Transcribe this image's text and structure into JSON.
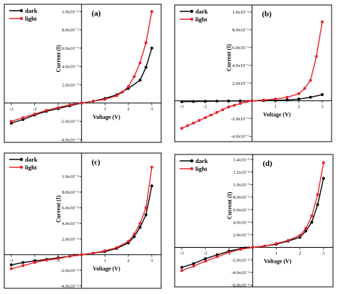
{
  "chart_data": [
    {
      "type": "line",
      "panel_label": "(a)",
      "xlabel": "Voltage (V)",
      "ylabel": "Current (I)",
      "xlim": [
        -3.3,
        3.4
      ],
      "ylim": [
        -4.3e-07,
        1.08e-06
      ],
      "xticks": [
        -3,
        -2,
        -1,
        1,
        2,
        3
      ],
      "xtick_labels": [
        "-3",
        "-2",
        "-1",
        "1",
        "2",
        "3"
      ],
      "yticks": [
        1e-06,
        8e-07,
        6e-07,
        4e-07,
        2e-07,
        0,
        -2e-07,
        -4e-07
      ],
      "ytick_labels": [
        "1.0x10⁻⁶",
        "8.0x10⁻⁷",
        "6.0x10⁻⁷",
        "4.0x10⁻⁷",
        "2.0x10⁻⁷",
        "0.0",
        "-2.0x10⁻⁷",
        "-4.0x10⁻⁷"
      ],
      "legend_position": "top-left",
      "series": [
        {
          "name": "dark",
          "color": "#000000",
          "x": [
            -3,
            -2.5,
            -2,
            -1.5,
            -1,
            -0.5,
            0,
            0.5,
            1,
            1.5,
            2,
            2.5,
            2.75,
            3
          ],
          "y": [
            -2.2e-07,
            -1.8e-07,
            -1.3e-07,
            -9e-08,
            -6e-08,
            -3e-08,
            0,
            2e-08,
            5e-08,
            9e-08,
            1.6e-07,
            2.5e-07,
            3.9e-07,
            6e-07
          ]
        },
        {
          "name": "light",
          "color": "#e8202a",
          "x": [
            -3,
            -2.5,
            -2,
            -1.5,
            -1,
            -0.5,
            0,
            0.5,
            1,
            1.5,
            1.75,
            2,
            2.25,
            2.5,
            2.75,
            3
          ],
          "y": [
            -2e-07,
            -1.6e-07,
            -1.2e-07,
            -8e-08,
            -5e-08,
            -2e-08,
            0,
            2e-08,
            4e-08,
            8e-08,
            1.2e-07,
            1.8e-07,
            2.9e-07,
            4.4e-07,
            6.6e-07,
            1e-06
          ]
        }
      ]
    },
    {
      "type": "line",
      "panel_label": "(b)",
      "xlabel": "Voltage (V)",
      "ylabel": "Current (I)",
      "xlim": [
        -3.3,
        3.4
      ],
      "ylim": [
        -4.6e-06,
        1.08e-05
      ],
      "xticks": [
        -3,
        -2,
        -1,
        1,
        2,
        3
      ],
      "xtick_labels": [
        "-3",
        "-2",
        "-1",
        "1",
        "2",
        "3"
      ],
      "yticks": [
        1e-05,
        8e-06,
        6e-06,
        4e-06,
        2e-06,
        0,
        -2e-06,
        -4e-06
      ],
      "ytick_labels": [
        "1.0x10⁻⁵",
        "8.0x10⁻⁶",
        "6.0x10⁻⁶",
        "4.0x10⁻⁶",
        "2.0x10⁻⁶",
        "0.0",
        "-2.0x10⁻⁶",
        "-4.0x10⁻⁶"
      ],
      "legend_position": "top-left",
      "series": [
        {
          "name": "dark",
          "color": "#000000",
          "x": [
            -3,
            -2.5,
            -2,
            -1.5,
            -1,
            -0.5,
            0,
            0.5,
            1,
            1.5,
            2,
            2.5,
            3
          ],
          "y": [
            -1e-07,
            -8e-08,
            -6e-08,
            -4e-08,
            -2e-08,
            -1e-08,
            0,
            2e-08,
            5e-08,
            1e-07,
            2e-07,
            4e-07,
            7e-07
          ]
        },
        {
          "name": "light",
          "color": "#e8202a",
          "x": [
            -3,
            -2.75,
            -2.5,
            -2.25,
            -2,
            -1.75,
            -1.5,
            -1.25,
            -1,
            -0.75,
            -0.5,
            -0.25,
            0,
            0.5,
            1,
            1.5,
            2,
            2.25,
            2.5,
            2.75,
            3
          ],
          "y": [
            -3.1e-06,
            -2.8e-06,
            -2.5e-06,
            -2.2e-06,
            -1.9e-06,
            -1.6e-06,
            -1.3e-06,
            -1e-06,
            -7e-07,
            -5e-07,
            -3e-07,
            -1e-07,
            0,
            1e-07,
            2e-07,
            4e-07,
            8e-07,
            1.4e-06,
            2.3e-06,
            5e-06,
            8.9e-06
          ]
        }
      ]
    },
    {
      "type": "line",
      "panel_label": "(c)",
      "xlabel": "Voltage (V)",
      "ylabel": "Current (I)",
      "xlim": [
        -3.3,
        3.4
      ],
      "ylim": [
        -4.3e-05,
        0.00013
      ],
      "xticks": [
        -3,
        -2,
        -1,
        1,
        2,
        3
      ],
      "xtick_labels": [
        "-3",
        "-2",
        "-1",
        "1",
        "2",
        "3"
      ],
      "yticks": [
        0.0001,
        8e-05,
        6e-05,
        4e-05,
        2e-05,
        0,
        -2e-05,
        -4e-05
      ],
      "ytick_labels": [
        "1.0x10⁻⁴",
        "8.0x10⁻⁵",
        "6.0x10⁻⁵",
        "4.0x10⁻⁵",
        "2.0x10⁻⁵",
        "0.0",
        "-2.0x10⁻⁵",
        "-4.0x10⁻⁵"
      ],
      "legend_position": "top-left",
      "series": [
        {
          "name": "dark",
          "color": "#000000",
          "x": [
            -3,
            -2.5,
            -2,
            -1.5,
            -1,
            -0.5,
            0,
            0.5,
            1,
            1.5,
            2,
            2.25,
            2.5,
            2.75,
            3
          ],
          "y": [
            -1.3e-05,
            -1e-05,
            -8e-06,
            -6e-06,
            -4e-06,
            -2e-06,
            0,
            2e-06,
            4e-06,
            8e-06,
            1.5e-05,
            2.3e-05,
            3.5e-05,
            5.1e-05,
            8.8e-05
          ]
        },
        {
          "name": "light",
          "color": "#e8202a",
          "x": [
            -3,
            -2.5,
            -2,
            -1.5,
            -1,
            -0.5,
            0,
            0.5,
            1,
            1.5,
            2,
            2.25,
            2.5,
            2.75,
            3
          ],
          "y": [
            -1.8e-05,
            -1.4e-05,
            -1e-05,
            -7e-06,
            -5e-06,
            -2e-06,
            0,
            2e-06,
            5e-06,
            9e-06,
            1.7e-05,
            2.6e-05,
            4e-05,
            6e-05,
            0.000112
          ]
        }
      ]
    },
    {
      "type": "line",
      "panel_label": "(d)",
      "xlabel": "Voltage (V)",
      "ylabel": "Current (I)",
      "xlim": [
        -3.3,
        3.4
      ],
      "ylim": [
        -6.3e-06,
        1.48e-05
      ],
      "xticks": [
        -3,
        -2,
        -1,
        1,
        2,
        3
      ],
      "xtick_labels": [
        "-3",
        "-2",
        "-1",
        "1",
        "2",
        "3"
      ],
      "yticks": [
        1.4e-05,
        1.2e-05,
        1e-05,
        8e-06,
        6e-06,
        4e-06,
        2e-06,
        0,
        -2e-06,
        -4e-06,
        -6e-06
      ],
      "ytick_labels": [
        "1.4x10⁻⁵",
        "1.2x10⁻⁵",
        "1.0x10⁻⁵",
        "8.0x10⁻⁶",
        "6.0x10⁻⁶",
        "4.0x10⁻⁶",
        "2.0x10⁻⁶",
        "0.0",
        "-2.0x10⁻⁶",
        "-4.0x10⁻⁶",
        "-6.0x10⁻⁶"
      ],
      "legend_position": "top-left",
      "series": [
        {
          "name": "dark",
          "color": "#000000",
          "x": [
            -3,
            -2.5,
            -2,
            -1.5,
            -1,
            -0.5,
            0,
            0.5,
            1,
            1.5,
            2,
            2.25,
            2.5,
            2.75,
            3
          ],
          "y": [
            -3.2e-06,
            -2.6e-06,
            -1.8e-06,
            -1.2e-06,
            -6e-07,
            -2e-07,
            0,
            2e-07,
            5e-07,
            1e-06,
            1.6e-06,
            2.6e-06,
            4e-06,
            6.8e-06,
            1.1e-05
          ]
        },
        {
          "name": "light",
          "color": "#e8202a",
          "x": [
            -3,
            -2.5,
            -2,
            -1.5,
            -1,
            -0.5,
            0,
            0.5,
            1,
            1.5,
            2,
            2.25,
            2.5,
            2.75,
            3
          ],
          "y": [
            -3.7e-06,
            -3e-06,
            -2.2e-06,
            -1.5e-06,
            -8e-07,
            -3e-07,
            0,
            2e-07,
            6e-07,
            1.1e-06,
            1.9e-06,
            3e-06,
            5e-06,
            8.4e-06,
            1.35e-05
          ]
        }
      ]
    }
  ]
}
